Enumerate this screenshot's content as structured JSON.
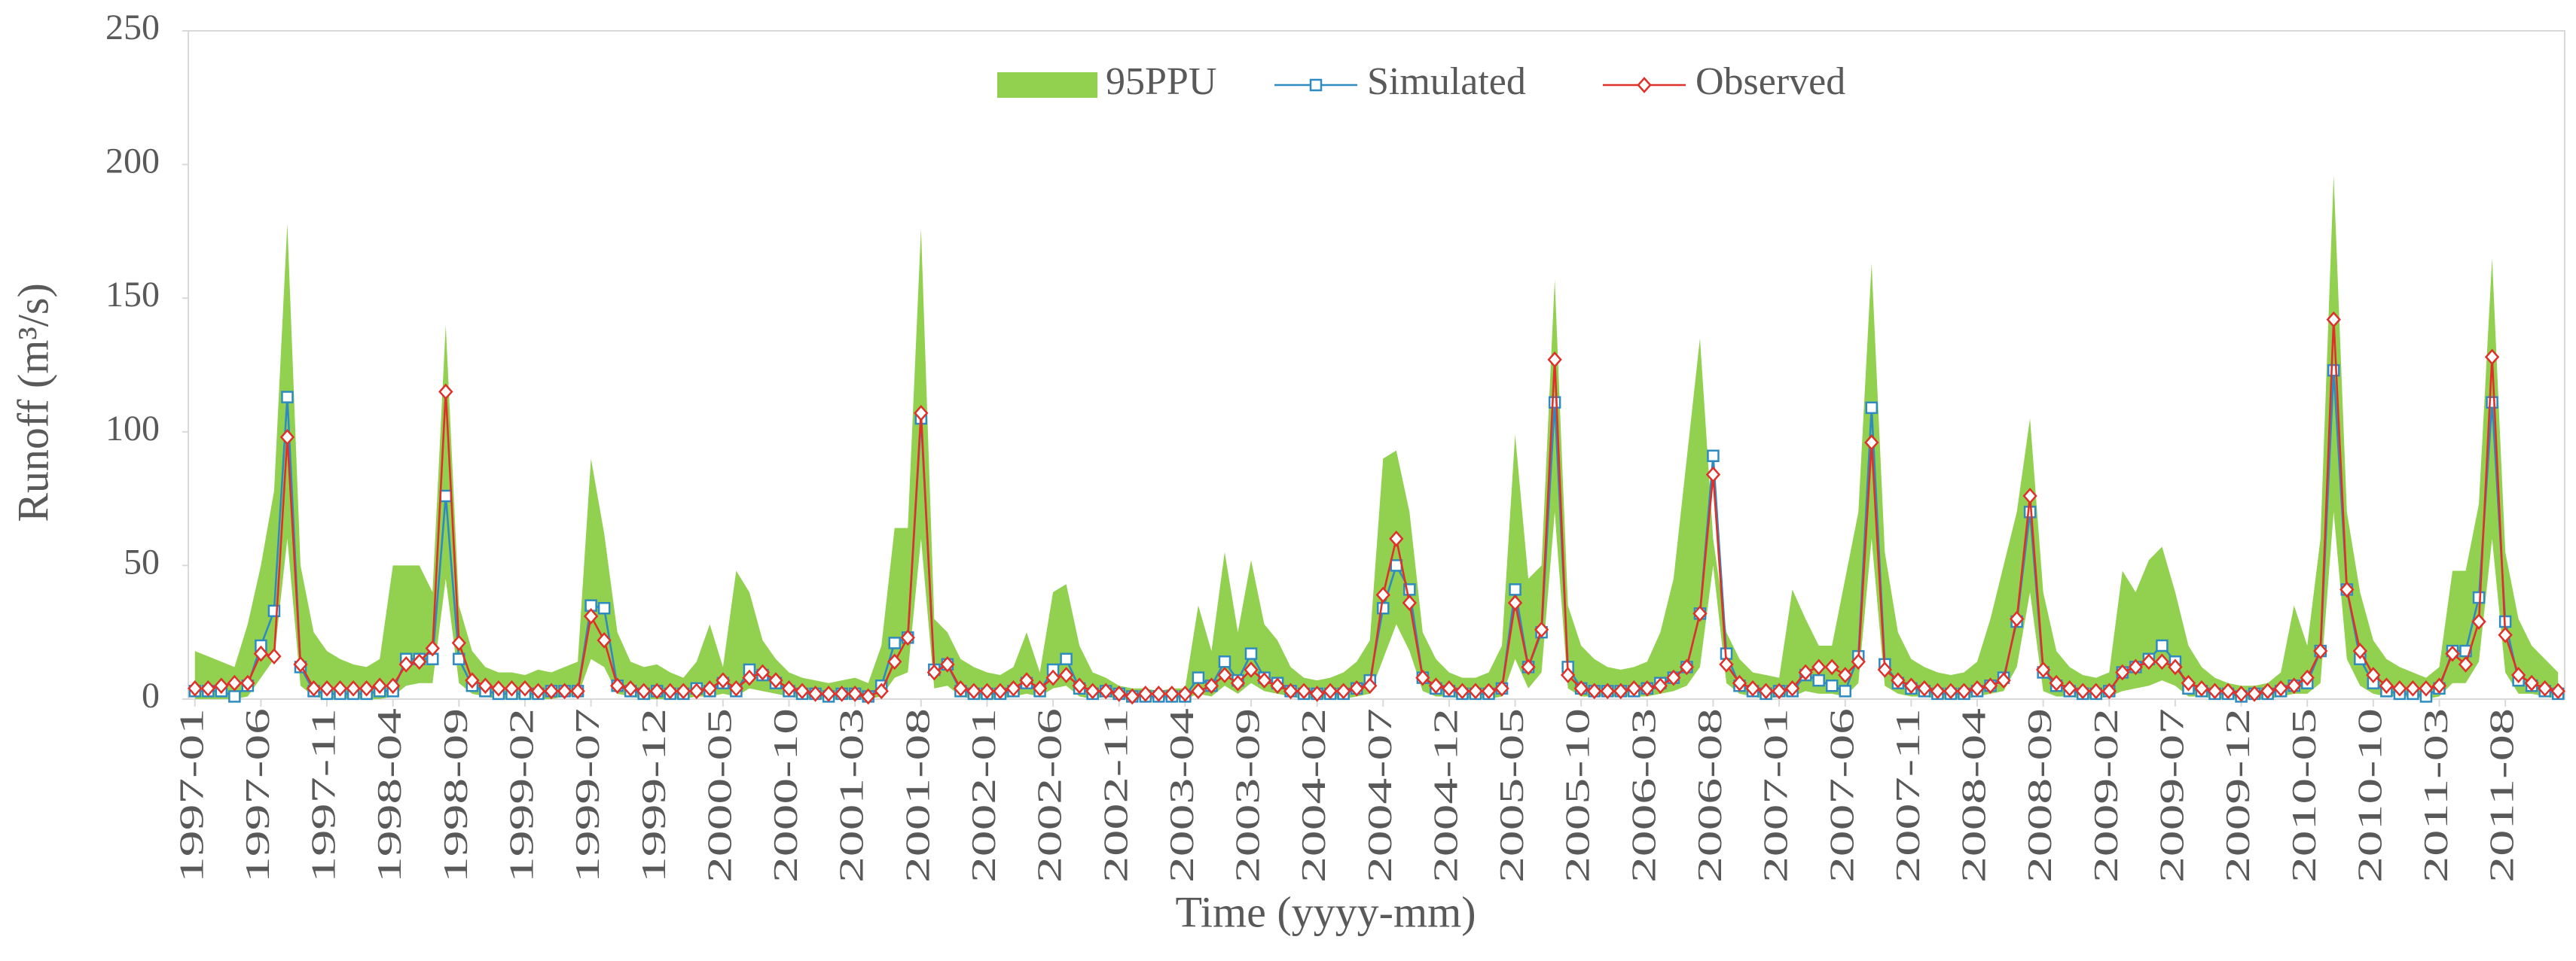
{
  "chart_data": {
    "type": "line",
    "xlabel": "Time (yyyy-mm)",
    "ylabel": "Runoff (m³/s)",
    "categories": [
      "1997-01",
      null,
      null,
      null,
      null,
      "1997-06",
      null,
      null,
      null,
      null,
      "1997-11",
      null,
      null,
      null,
      null,
      "1998-04",
      null,
      null,
      null,
      null,
      "1998-09",
      null,
      null,
      null,
      null,
      "1999-02",
      null,
      null,
      null,
      null,
      "1999-07",
      null,
      null,
      null,
      null,
      "1999-12",
      null,
      null,
      null,
      null,
      "2000-05",
      null,
      null,
      null,
      null,
      "2000-10",
      null,
      null,
      null,
      null,
      "2001-03",
      null,
      null,
      null,
      null,
      "2001-08",
      null,
      null,
      null,
      null,
      "2002-01",
      null,
      null,
      null,
      null,
      "2002-06",
      null,
      null,
      null,
      null,
      "2002-11",
      null,
      null,
      null,
      null,
      "2003-04",
      null,
      null,
      null,
      null,
      "2003-09",
      null,
      null,
      null,
      null,
      "2004-02",
      null,
      null,
      null,
      null,
      "2004-07",
      null,
      null,
      null,
      null,
      "2004-12",
      null,
      null,
      null,
      null,
      "2005-05",
      null,
      null,
      null,
      null,
      "2005-10",
      null,
      null,
      null,
      null,
      "2006-03",
      null,
      null,
      null,
      null,
      "2006-08",
      null,
      null,
      null,
      null,
      "2007-01",
      null,
      null,
      null,
      null,
      "2007-06",
      null,
      null,
      null,
      null,
      "2007-11",
      null,
      null,
      null,
      null,
      "2008-04",
      null,
      null,
      null,
      null,
      "2008-09",
      null,
      null,
      null,
      null,
      "2009-02",
      null,
      null,
      null,
      null,
      "2009-07",
      null,
      null,
      null,
      null,
      "2009-12",
      null,
      null,
      null,
      null,
      "2010-05",
      null,
      null,
      null,
      null,
      "2010-10",
      null,
      null,
      null,
      null,
      "2011-03",
      null,
      null,
      null,
      null,
      "2011-08",
      null,
      null,
      null,
      null
    ],
    "band": {
      "name": "95PPU",
      "color": "#92d050",
      "upper": [
        18,
        16,
        14,
        12,
        28,
        50,
        78,
        178,
        50,
        25,
        18,
        15,
        13,
        12,
        15,
        50,
        50,
        50,
        40,
        140,
        35,
        18,
        12,
        10,
        10,
        9,
        11,
        10,
        12,
        14,
        90,
        62,
        25,
        14,
        12,
        13,
        10,
        8,
        14,
        28,
        12,
        48,
        40,
        22,
        15,
        10,
        8,
        7,
        6,
        7,
        8,
        6,
        20,
        64,
        64,
        176,
        30,
        25,
        15,
        12,
        10,
        9,
        12,
        25,
        10,
        40,
        43,
        20,
        10,
        8,
        5,
        4,
        4,
        3,
        4,
        4,
        35,
        18,
        55,
        25,
        52,
        28,
        22,
        12,
        8,
        7,
        8,
        10,
        14,
        22,
        90,
        93,
        70,
        25,
        15,
        10,
        8,
        8,
        10,
        20,
        99,
        45,
        50,
        157,
        35,
        20,
        15,
        12,
        11,
        12,
        14,
        25,
        45,
        90,
        135,
        60,
        25,
        15,
        10,
        9,
        8,
        41,
        30,
        20,
        20,
        45,
        70,
        163,
        55,
        25,
        15,
        12,
        10,
        9,
        10,
        14,
        30,
        50,
        70,
        105,
        40,
        18,
        12,
        9,
        8,
        10,
        48,
        40,
        52,
        57,
        40,
        20,
        12,
        8,
        6,
        5,
        5,
        6,
        10,
        35,
        20,
        60,
        196,
        70,
        40,
        22,
        15,
        12,
        10,
        8,
        12,
        48,
        48,
        73,
        165,
        55,
        30,
        20,
        15,
        10
      ],
      "lower": [
        0,
        0,
        0,
        0,
        1,
        8,
        15,
        60,
        5,
        1,
        0,
        0,
        0,
        0,
        0,
        1,
        5,
        6,
        6,
        45,
        6,
        2,
        1,
        0,
        0,
        0,
        0,
        0,
        1,
        1,
        15,
        12,
        2,
        1,
        0,
        0,
        0,
        0,
        1,
        1,
        2,
        1,
        4,
        3,
        2,
        1,
        0,
        0,
        0,
        0,
        0,
        0,
        1,
        8,
        10,
        60,
        4,
        5,
        1,
        0,
        0,
        0,
        1,
        2,
        1,
        4,
        5,
        1,
        0,
        1,
        0,
        0,
        0,
        0,
        0,
        0,
        2,
        1,
        5,
        2,
        6,
        3,
        2,
        1,
        0,
        0,
        0,
        0,
        1,
        2,
        15,
        28,
        18,
        3,
        1,
        1,
        0,
        0,
        0,
        1,
        15,
        4,
        10,
        70,
        4,
        1,
        1,
        1,
        1,
        1,
        1,
        2,
        3,
        5,
        12,
        50,
        6,
        2,
        1,
        0,
        1,
        1,
        3,
        2,
        2,
        1,
        6,
        60,
        5,
        2,
        1,
        1,
        0,
        0,
        0,
        1,
        2,
        3,
        12,
        40,
        3,
        1,
        1,
        0,
        0,
        1,
        3,
        4,
        5,
        7,
        5,
        1,
        1,
        0,
        0,
        0,
        0,
        0,
        1,
        2,
        2,
        6,
        70,
        15,
        5,
        2,
        1,
        1,
        1,
        0,
        1,
        6,
        6,
        14,
        60,
        10,
        2,
        2,
        1,
        0
      ]
    },
    "series": [
      {
        "name": "Simulated",
        "color": "#2e8bc0",
        "marker": "square",
        "values": [
          3,
          3,
          3,
          1,
          5,
          20,
          33,
          113,
          12,
          3,
          2,
          2,
          2,
          2,
          3,
          3,
          15,
          15,
          15,
          76,
          15,
          5,
          3,
          2,
          2,
          2,
          2,
          3,
          3,
          3,
          35,
          34,
          5,
          3,
          2,
          3,
          2,
          2,
          4,
          3,
          6,
          3,
          11,
          9,
          6,
          3,
          2,
          2,
          1,
          2,
          2,
          1,
          5,
          21,
          23,
          105,
          11,
          13,
          3,
          2,
          2,
          2,
          3,
          6,
          3,
          11,
          15,
          4,
          2,
          3,
          2,
          1,
          1,
          1,
          1,
          1,
          8,
          5,
          14,
          7,
          17,
          8,
          6,
          3,
          2,
          2,
          2,
          2,
          4,
          7,
          34,
          50,
          41,
          8,
          4,
          3,
          2,
          2,
          2,
          4,
          41,
          12,
          25,
          111,
          12,
          4,
          3,
          3,
          3,
          3,
          4,
          6,
          8,
          12,
          32,
          91,
          17,
          5,
          3,
          2,
          3,
          3,
          9,
          7,
          5,
          3,
          16,
          109,
          13,
          6,
          4,
          3,
          2,
          2,
          2,
          3,
          5,
          8,
          29,
          70,
          10,
          5,
          3,
          2,
          2,
          3,
          10,
          12,
          15,
          20,
          14,
          4,
          3,
          2,
          2,
          1,
          2,
          2,
          3,
          5,
          6,
          18,
          123,
          41,
          15,
          6,
          3,
          2,
          2,
          1,
          4,
          18,
          18,
          38,
          111,
          29,
          7,
          5,
          3,
          2
        ]
      },
      {
        "name": "Observed",
        "color": "#e0302a",
        "marker": "diamond",
        "values": [
          4,
          4,
          5,
          6,
          6,
          17,
          16,
          98,
          13,
          4,
          4,
          4,
          4,
          4,
          5,
          5,
          13,
          14,
          19,
          115,
          21,
          7,
          5,
          4,
          4,
          4,
          3,
          3,
          3,
          3,
          31,
          22,
          5,
          4,
          3,
          3,
          3,
          3,
          3,
          4,
          7,
          4,
          8,
          10,
          7,
          4,
          3,
          2,
          2,
          2,
          2,
          1,
          3,
          14,
          23,
          107,
          10,
          13,
          4,
          3,
          3,
          3,
          4,
          7,
          4,
          8,
          9,
          5,
          3,
          3,
          2,
          1,
          2,
          2,
          2,
          2,
          3,
          5,
          9,
          6,
          11,
          7,
          5,
          3,
          3,
          2,
          3,
          3,
          4,
          5,
          39,
          60,
          36,
          8,
          5,
          4,
          3,
          3,
          3,
          4,
          36,
          12,
          26,
          127,
          9,
          4,
          3,
          3,
          3,
          4,
          4,
          5,
          8,
          12,
          32,
          84,
          13,
          6,
          4,
          3,
          3,
          4,
          10,
          12,
          12,
          9,
          14,
          96,
          11,
          7,
          5,
          4,
          3,
          3,
          3,
          4,
          5,
          7,
          30,
          76,
          11,
          6,
          4,
          3,
          3,
          3,
          10,
          12,
          14,
          14,
          12,
          6,
          4,
          3,
          3,
          2,
          2,
          3,
          4,
          5,
          8,
          18,
          142,
          41,
          18,
          9,
          5,
          4,
          4,
          4,
          5,
          17,
          13,
          29,
          128,
          24,
          9,
          6,
          4,
          3
        ]
      }
    ],
    "ylim": [
      0,
      250
    ],
    "yticks": [
      0,
      50,
      100,
      150,
      200,
      250
    ],
    "grid": false,
    "legend": "top"
  }
}
